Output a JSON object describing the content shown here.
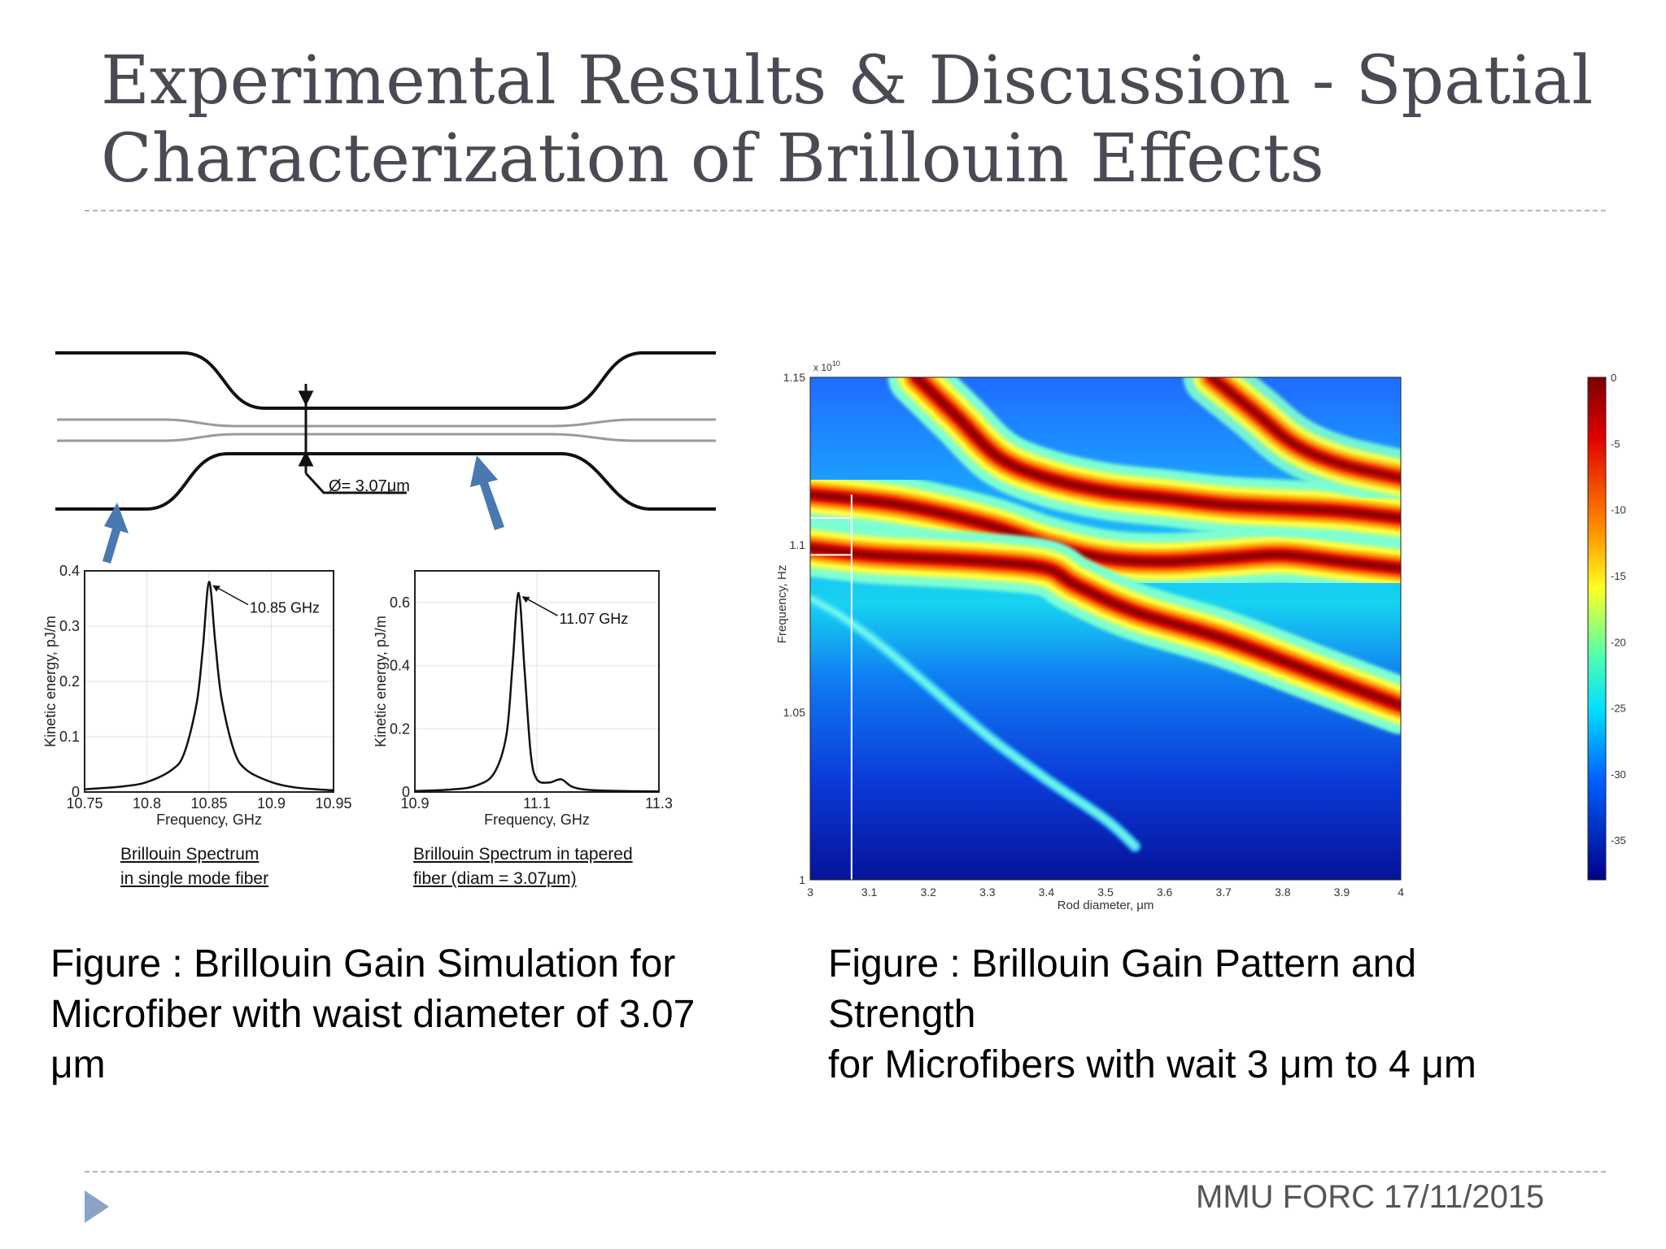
{
  "slide": {
    "title_line1": "Experimental Results & Discussion - Spatial",
    "title_line2": "Characterization of Brillouin Effects",
    "footer": "MMU FORC 17/11/2015",
    "bullet_icon": "triangle-bullet-icon"
  },
  "taper": {
    "diameter_label": "Ø= 3.07μm",
    "arrow_icon": "blue-arrow-icon"
  },
  "captions": {
    "left": [
      "Figure : Brillouin Gain Simulation for",
      "Microfiber with waist diameter of 3.07",
      "μm"
    ],
    "right": [
      "Figure : Brillouin Gain Pattern and",
      "Strength",
      "for Microfibers with wait 3 μm to 4 μm"
    ]
  },
  "colors": {
    "title": "#4a4a55",
    "rule": "#a8b4c8",
    "arrow": "#4a78b0",
    "bullet": "#8aa4c8"
  },
  "chart_data": [
    {
      "type": "line",
      "xlabel": "Frequency, GHz",
      "ylabel": "Kinetic energy, pJ/m",
      "xlim": [
        10.75,
        10.95
      ],
      "ylim": [
        0,
        0.4
      ],
      "xticks": [
        "10.75",
        "10.8",
        "10.85",
        "10.9",
        "10.95"
      ],
      "yticks": [
        "0",
        "0.1",
        "0.2",
        "0.3",
        "0.4"
      ],
      "grid": true,
      "peak": {
        "x": 10.85,
        "y": 0.38,
        "label": "10.85 GHz"
      },
      "x": [
        10.75,
        10.78,
        10.8,
        10.82,
        10.83,
        10.84,
        10.845,
        10.85,
        10.855,
        10.86,
        10.87,
        10.88,
        10.9,
        10.92,
        10.95
      ],
      "y": [
        0.005,
        0.01,
        0.018,
        0.04,
        0.07,
        0.16,
        0.26,
        0.38,
        0.27,
        0.17,
        0.075,
        0.04,
        0.018,
        0.008,
        0.003
      ],
      "subcaption": [
        "Brillouin Spectrum",
        "in single mode fiber"
      ]
    },
    {
      "type": "line",
      "xlabel": "Frequency, GHz",
      "ylabel": "Kinetic energy, pJ/m",
      "xlim": [
        10.9,
        11.3
      ],
      "ylim": [
        0,
        0.7
      ],
      "xticks": [
        "10.9",
        "11.1",
        "11.3"
      ],
      "yticks": [
        "0",
        "0.2",
        "0.4",
        "0.6"
      ],
      "grid": true,
      "peak": {
        "x": 11.07,
        "y": 0.63,
        "label": "11.07 GHz"
      },
      "x": [
        10.9,
        10.96,
        11.0,
        11.03,
        11.05,
        11.06,
        11.07,
        11.08,
        11.09,
        11.1,
        11.12,
        11.14,
        11.16,
        11.2,
        11.3
      ],
      "y": [
        0.003,
        0.008,
        0.02,
        0.06,
        0.18,
        0.4,
        0.63,
        0.38,
        0.12,
        0.04,
        0.03,
        0.04,
        0.015,
        0.005,
        0.002
      ],
      "subcaption": [
        "Brillouin Spectrum in tapered",
        "fiber (diam = 3.07μm)"
      ]
    },
    {
      "type": "heatmap",
      "xlabel": "Rod diameter, μm",
      "ylabel": "Frequency, Hz",
      "y_exponent": "x 10",
      "y_exponent_power": "10",
      "xlim": [
        3,
        4
      ],
      "ylim": [
        1.0,
        1.15
      ],
      "xticks": [
        "3",
        "3.1",
        "3.2",
        "3.3",
        "3.4",
        "3.5",
        "3.6",
        "3.7",
        "3.8",
        "3.9",
        "4"
      ],
      "yticks": [
        "1",
        "1.05",
        "1.1",
        "1.15"
      ],
      "colorbar_ticks": [
        "0",
        "-5",
        "-10",
        "-15",
        "-20",
        "-25",
        "-30",
        "-35"
      ],
      "colorbar_range": [
        -38,
        0
      ],
      "marker_x": 3.07,
      "bands": [
        {
          "points": [
            [
              3.0,
              1.115
            ],
            [
              3.15,
              1.112
            ],
            [
              3.3,
              1.106
            ],
            [
              3.4,
              1.1
            ],
            [
              3.5,
              1.096
            ],
            [
              3.6,
              1.095
            ],
            [
              3.7,
              1.096
            ],
            [
              3.8,
              1.097
            ],
            [
              3.9,
              1.095
            ],
            [
              4.0,
              1.093
            ]
          ],
          "level": 0
        },
        {
          "points": [
            [
              3.0,
              1.099
            ],
            [
              3.1,
              1.097
            ],
            [
              3.2,
              1.096
            ],
            [
              3.3,
              1.095
            ],
            [
              3.4,
              1.093
            ],
            [
              3.45,
              1.088
            ],
            [
              3.55,
              1.08
            ],
            [
              3.7,
              1.072
            ],
            [
              3.85,
              1.062
            ],
            [
              4.0,
              1.052
            ]
          ],
          "level": -1
        },
        {
          "points": [
            [
              3.18,
              1.15
            ],
            [
              3.25,
              1.138
            ],
            [
              3.32,
              1.126
            ],
            [
              3.4,
              1.12
            ],
            [
              3.5,
              1.116
            ],
            [
              3.6,
              1.114
            ],
            [
              3.7,
              1.112
            ],
            [
              3.8,
              1.111
            ],
            [
              3.9,
              1.11
            ],
            [
              4.0,
              1.108
            ]
          ],
          "level": -2
        },
        {
          "points": [
            [
              3.0,
              1.084
            ],
            [
              3.05,
              1.079
            ],
            [
              3.12,
              1.07
            ],
            [
              3.2,
              1.058
            ],
            [
              3.3,
              1.043
            ],
            [
              3.4,
              1.03
            ],
            [
              3.5,
              1.018
            ],
            [
              3.55,
              1.01
            ]
          ],
          "level": -8
        },
        {
          "points": [
            [
              3.68,
              1.15
            ],
            [
              3.75,
              1.14
            ],
            [
              3.82,
              1.13
            ],
            [
              3.9,
              1.124
            ],
            [
              4.0,
              1.12
            ]
          ],
          "level": -4
        }
      ]
    }
  ]
}
